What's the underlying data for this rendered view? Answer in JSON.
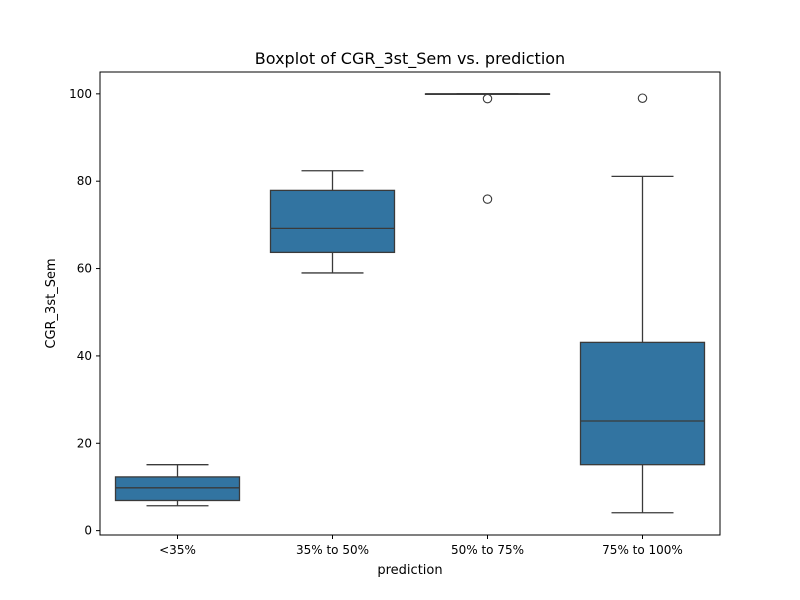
{
  "chart_data": {
    "type": "box",
    "title": "Boxplot of CGR_3st_Sem vs. prediction",
    "xlabel": "prediction",
    "ylabel": "CGR_3st_Sem",
    "ylim": [
      -1,
      105
    ],
    "yticks": [
      0,
      20,
      40,
      60,
      80,
      100
    ],
    "ytick_labels": [
      "0",
      "20",
      "40",
      "60",
      "80",
      "100"
    ],
    "grid": false,
    "box_color": "#3274a1",
    "line_color": "#3a3a3a",
    "categories": [
      "<35%",
      "35% to 50%",
      "50% to 75%",
      "75% to 100%"
    ],
    "boxes": [
      {
        "category": "<35%",
        "whisker_low": 5.7,
        "q1": 6.9,
        "median": 9.8,
        "q3": 12.3,
        "whisker_high": 15.1,
        "outliers": []
      },
      {
        "category": "35% to 50%",
        "whisker_low": 59.0,
        "q1": 63.7,
        "median": 69.2,
        "q3": 77.9,
        "whisker_high": 82.4,
        "outliers": []
      },
      {
        "category": "50% to 75%",
        "whisker_low": 100.0,
        "q1": 100.0,
        "median": 100.0,
        "q3": 100.0,
        "whisker_high": 100.0,
        "outliers": [
          98.9,
          75.9
        ]
      },
      {
        "category": "75% to 100%",
        "whisker_low": 4.1,
        "q1": 15.1,
        "median": 25.1,
        "q3": 43.1,
        "whisker_high": 81.1,
        "outliers": [
          99.0
        ]
      }
    ]
  }
}
